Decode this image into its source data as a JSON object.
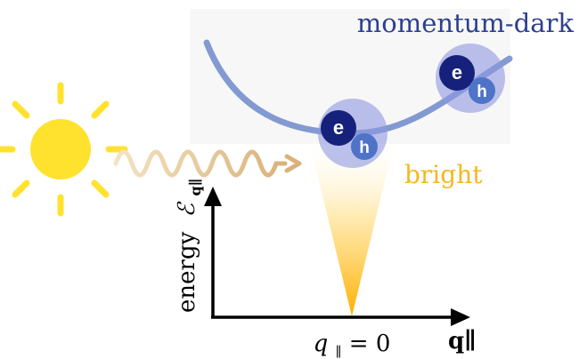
{
  "labels": {
    "momentum_dark": "momentum-dark",
    "bright": "bright",
    "energy_axis_word": "energy",
    "energy_axis_symbol": "ℰ",
    "energy_axis_subscript": "q∥",
    "x_axis_label": "q∥",
    "q_zero_var": "q",
    "q_zero_sub": "∥",
    "q_zero_rest": " = 0"
  },
  "excitons": [
    {
      "electron": "e",
      "hole": "h",
      "state": "bright"
    },
    {
      "electron": "e",
      "hole": "h",
      "state": "momentum-dark"
    }
  ],
  "colors": {
    "dispersion": "#5b7bc4",
    "dark_label": "#2e3f8f",
    "bright_label": "#f5b81f",
    "sun": "#ffe22e",
    "photon_wave": "#e6c58a",
    "electron": "#15217a",
    "hole": "#4f73c7",
    "exciton_halo": "#8e98e0",
    "axis": "#000000"
  }
}
